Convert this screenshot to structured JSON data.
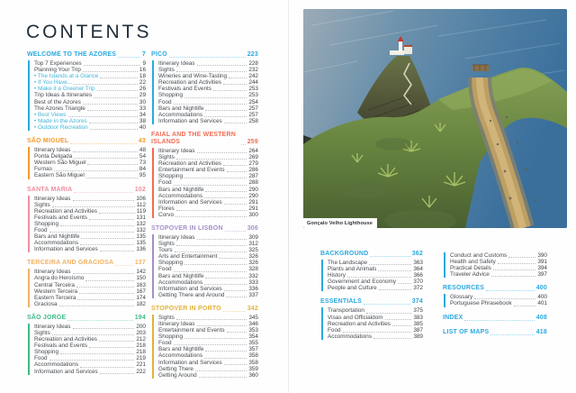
{
  "page_title": "CONTENTS",
  "photo": {
    "caption": "Gonçalo Velho Lighthouse"
  },
  "colors": {
    "blue": "#2ba9e0",
    "orange": "#f49a2e",
    "pink": "#ef8fa0",
    "peach": "#f2b264",
    "green": "#3fba86",
    "coral": "#f26c52",
    "purple": "#a58fc8",
    "gold": "#e2b23c",
    "bullet_teal": "#43b7da",
    "title_navy": "#222e39"
  },
  "toc_columns": [
    {
      "sections": [
        {
          "title": "WELCOME TO THE AZORES",
          "page": "7",
          "color": "#2ba9e0",
          "items": [
            {
              "label": "Top 7 Experiences",
              "page": "9"
            },
            {
              "label": "Planning Your Trip",
              "page": "16"
            },
            {
              "label": "The Islands at a Glance",
              "page": "18",
              "bullet": true
            },
            {
              "label": "If You Have...",
              "page": "22",
              "bullet": true
            },
            {
              "label": "Make it a Greener Trip",
              "page": "26",
              "bullet": true
            },
            {
              "label": "Trip Ideas & Itineraries",
              "page": "29"
            },
            {
              "label": "Best of the Azores",
              "page": "30"
            },
            {
              "label": "The Azores Triangle",
              "page": "33"
            },
            {
              "label": "Best Views",
              "page": "34",
              "bullet": true
            },
            {
              "label": "Made in the Azores",
              "page": "38",
              "bullet": true
            },
            {
              "label": "Outdoor Recreation",
              "page": "40",
              "bullet": true
            }
          ]
        },
        {
          "title": "SÃO MIGUEL",
          "page": "43",
          "color": "#f49a2e",
          "items": [
            {
              "label": "Itinerary Ideas",
              "page": "48"
            },
            {
              "label": "Ponta Delgada",
              "page": "54"
            },
            {
              "label": "Western São Miguel",
              "page": "73"
            },
            {
              "label": "Furnas",
              "page": "84"
            },
            {
              "label": "Eastern São Miguel",
              "page": "95"
            }
          ]
        },
        {
          "title": "SANTA MARIA",
          "page": "102",
          "color": "#ef8fa0",
          "items": [
            {
              "label": "Itinerary Ideas",
              "page": "106"
            },
            {
              "label": "Sights",
              "page": "112"
            },
            {
              "label": "Recreation and Activities",
              "page": "119"
            },
            {
              "label": "Festivals and Events",
              "page": "131"
            },
            {
              "label": "Shopping",
              "page": "132"
            },
            {
              "label": "Food",
              "page": "132"
            },
            {
              "label": "Bars and Nightlife",
              "page": "135"
            },
            {
              "label": "Accommodations",
              "page": "135"
            },
            {
              "label": "Information and Services",
              "page": "136"
            }
          ]
        },
        {
          "title": "TERCEIRA AND GRACIOSA",
          "page": "137",
          "color": "#f2b264",
          "items": [
            {
              "label": "Itinerary Ideas",
              "page": "142"
            },
            {
              "label": "Angra do Heroísmo",
              "page": "150"
            },
            {
              "label": "Central Terceira",
              "page": "163"
            },
            {
              "label": "Western Terceira",
              "page": "167"
            },
            {
              "label": "Eastern Terceira",
              "page": "174"
            },
            {
              "label": "Graciosa",
              "page": "182"
            }
          ]
        },
        {
          "title": "SÃO JORGE",
          "page": "194",
          "color": "#3fba86",
          "items": [
            {
              "label": "Itinerary Ideas",
              "page": "200"
            },
            {
              "label": "Sights",
              "page": "203"
            },
            {
              "label": "Recreation and Activities",
              "page": "212"
            },
            {
              "label": "Festivals and Events",
              "page": "218"
            },
            {
              "label": "Shopping",
              "page": "218"
            },
            {
              "label": "Food",
              "page": "219"
            },
            {
              "label": "Accommodations",
              "page": "221"
            },
            {
              "label": "Information and Services",
              "page": "222"
            }
          ]
        }
      ]
    },
    {
      "sections": [
        {
          "title": "PICO",
          "page": "223",
          "color": "#2ba9e0",
          "items": [
            {
              "label": "Itinerary Ideas",
              "page": "228"
            },
            {
              "label": "Sights",
              "page": "232"
            },
            {
              "label": "Wineries and Wine-Tasting",
              "page": "242"
            },
            {
              "label": "Recreation and Activities",
              "page": "244"
            },
            {
              "label": "Festivals and Events",
              "page": "253"
            },
            {
              "label": "Shopping",
              "page": "253"
            },
            {
              "label": "Food",
              "page": "254"
            },
            {
              "label": "Bars and Nightlife",
              "page": "257"
            },
            {
              "label": "Accommodations",
              "page": "257"
            },
            {
              "label": "Information and Services",
              "page": "258"
            }
          ]
        },
        {
          "title": "FAIAL AND THE WESTERN ISLANDS",
          "page": "259",
          "color": "#f26c52",
          "items": [
            {
              "label": "Itinerary Ideas",
              "page": "264"
            },
            {
              "label": "Sights",
              "page": "269"
            },
            {
              "label": "Recreation and Activities",
              "page": "279"
            },
            {
              "label": "Entertainment and Events",
              "page": "286"
            },
            {
              "label": "Shopping",
              "page": "287"
            },
            {
              "label": "Food",
              "page": "288"
            },
            {
              "label": "Bars and Nightlife",
              "page": "290"
            },
            {
              "label": "Accommodations",
              "page": "290"
            },
            {
              "label": "Information and Services",
              "page": "291"
            },
            {
              "label": "Flores",
              "page": "291"
            },
            {
              "label": "Corvo",
              "page": "300"
            }
          ]
        },
        {
          "title": "STOPOVER IN LISBON",
          "page": "306",
          "color": "#a58fc8",
          "items": [
            {
              "label": "Itinerary Ideas",
              "page": "309"
            },
            {
              "label": "Sights",
              "page": "312"
            },
            {
              "label": "Tours",
              "page": "325"
            },
            {
              "label": "Arts and Entertainment",
              "page": "326"
            },
            {
              "label": "Shopping",
              "page": "326"
            },
            {
              "label": "Food",
              "page": "328"
            },
            {
              "label": "Bars and Nightlife",
              "page": "332"
            },
            {
              "label": "Accommodations",
              "page": "333"
            },
            {
              "label": "Information and Services",
              "page": "336"
            },
            {
              "label": "Getting There and Around",
              "page": "337"
            }
          ]
        },
        {
          "title": "STOPOVER IN PORTO",
          "page": "342",
          "color": "#e2b23c",
          "items": [
            {
              "label": "Sights",
              "page": "345"
            },
            {
              "label": "Itinerary Ideas",
              "page": "346"
            },
            {
              "label": "Entertainment and Events",
              "page": "353"
            },
            {
              "label": "Shopping",
              "page": "354"
            },
            {
              "label": "Food",
              "page": "355"
            },
            {
              "label": "Bars and Nightlife",
              "page": "357"
            },
            {
              "label": "Accommodations",
              "page": "358"
            },
            {
              "label": "Information and Services",
              "page": "358"
            },
            {
              "label": "Getting There",
              "page": "359"
            },
            {
              "label": "Getting Around",
              "page": "360"
            }
          ]
        }
      ]
    },
    {
      "sections": [
        {
          "title": "BACKGROUND",
          "page": "362",
          "color": "#2ba9e0",
          "items": [
            {
              "label": "The Landscape",
              "page": "363"
            },
            {
              "label": "Plants and Animals",
              "page": "364"
            },
            {
              "label": "History",
              "page": "366"
            },
            {
              "label": "Government and Economy",
              "page": "370"
            },
            {
              "label": "People and Culture",
              "page": "372"
            }
          ]
        },
        {
          "title": "ESSENTIALS",
          "page": "374",
          "color": "#2ba9e0",
          "items": [
            {
              "label": "Transportation",
              "page": "375"
            },
            {
              "label": "Visas and Officialdom",
              "page": "383"
            },
            {
              "label": "Recreation and Activities",
              "page": "385"
            },
            {
              "label": "Food",
              "page": "387"
            },
            {
              "label": "Accommodations",
              "page": "389"
            }
          ]
        }
      ]
    },
    {
      "sections": [
        {
          "title": null,
          "page": null,
          "color": "#2ba9e0",
          "items": [
            {
              "label": "Conduct and Customs",
              "page": "390"
            },
            {
              "label": "Health and Safety",
              "page": "391"
            },
            {
              "label": "Practical Details",
              "page": "394"
            },
            {
              "label": "Traveler Advice",
              "page": "397"
            }
          ]
        },
        {
          "title": "RESOURCES",
          "page": "400",
          "color": "#2ba9e0",
          "items": [
            {
              "label": "Glossary",
              "page": "400"
            },
            {
              "label": "Portuguese Phrasebook",
              "page": "401"
            }
          ]
        },
        {
          "title": "INDEX",
          "page": "408",
          "color": "#2ba9e0",
          "items": []
        },
        {
          "title": "LIST OF MAPS",
          "page": "418",
          "color": "#2ba9e0",
          "items": []
        }
      ]
    }
  ]
}
